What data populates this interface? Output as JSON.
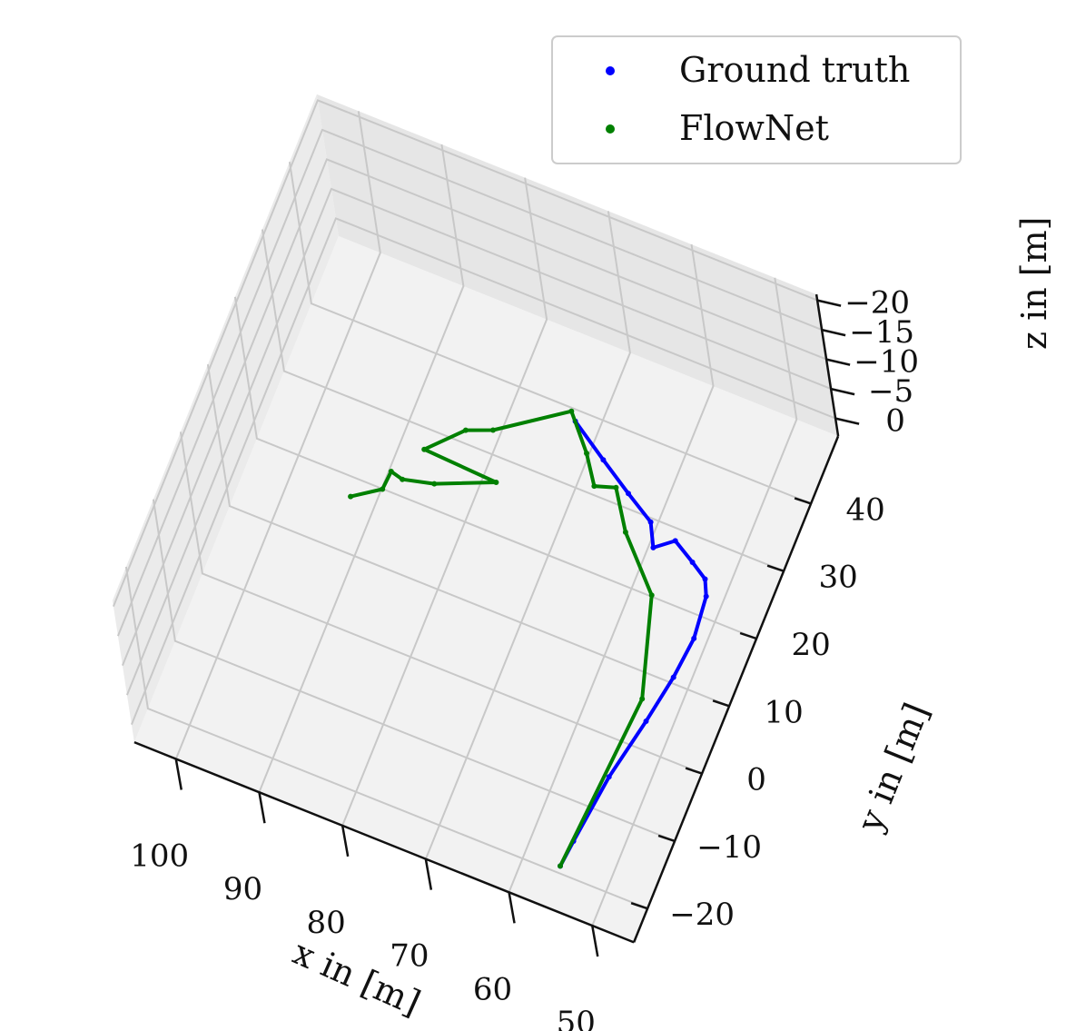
{
  "chart_data": {
    "type": "line",
    "projection": "3d",
    "grid": true,
    "legend_position": "top-right",
    "xlabel": "x in [m]",
    "ylabel": "y in [m]",
    "zlabel": "z in [m]",
    "xlim": [
      45,
      105
    ],
    "ylim": [
      -25,
      50
    ],
    "zlim": [
      -20,
      2
    ],
    "x_ticks": [
      "100",
      "90",
      "80",
      "70",
      "60",
      "50"
    ],
    "y_ticks": [
      "40",
      "30",
      "20",
      "10",
      "0",
      "−10",
      "−20"
    ],
    "z_ticks": [
      "−20",
      "−15",
      "−10",
      "−5",
      "0"
    ],
    "series": [
      {
        "name": "Ground truth",
        "color": "#0000ff",
        "points": [
          [
            74.5,
            42.0,
            -8.0
          ],
          [
            70.0,
            38.5,
            -8.0
          ],
          [
            66.0,
            35.5,
            -8.0
          ],
          [
            62.5,
            33.0,
            -8.0
          ],
          [
            61.0,
            29.5,
            -7.5
          ],
          [
            59.0,
            31.5,
            -7.5
          ],
          [
            56.5,
            30.0,
            -8.0
          ],
          [
            54.5,
            28.5,
            -8.0
          ],
          [
            53.5,
            26.0,
            -7.5
          ],
          [
            53.0,
            20.0,
            -7.5
          ],
          [
            53.5,
            14.0,
            -7.5
          ],
          [
            54.5,
            7.0,
            -7.5
          ],
          [
            56.0,
            -2.0,
            -7.5
          ],
          [
            57.0,
            -12.0,
            -7.5
          ],
          [
            57.5,
            -15.5,
            -8.0
          ]
        ]
      },
      {
        "name": "FlowNet",
        "color": "#008000",
        "points": [
          [
            98.0,
            28.0,
            -18.0
          ],
          [
            94.5,
            29.5,
            -16.5
          ],
          [
            94.0,
            31.5,
            -15.5
          ],
          [
            92.0,
            30.0,
            -14.0
          ],
          [
            88.0,
            30.0,
            -12.5
          ],
          [
            81.5,
            33.0,
            -12.0
          ],
          [
            91.5,
            36.0,
            -15.5
          ],
          [
            87.5,
            39.5,
            -14.0
          ],
          [
            84.0,
            39.5,
            -12.0
          ],
          [
            76.0,
            44.5,
            -10.0
          ],
          [
            72.0,
            38.5,
            -8.0
          ],
          [
            69.5,
            34.0,
            -7.0
          ],
          [
            66.5,
            33.5,
            -5.0
          ],
          [
            64.0,
            29.0,
            -6.0
          ],
          [
            59.0,
            23.0,
            -7.0
          ],
          [
            56.0,
            10.0,
            -8.0
          ],
          [
            57.5,
            -15.5,
            -8.0
          ]
        ]
      }
    ]
  }
}
